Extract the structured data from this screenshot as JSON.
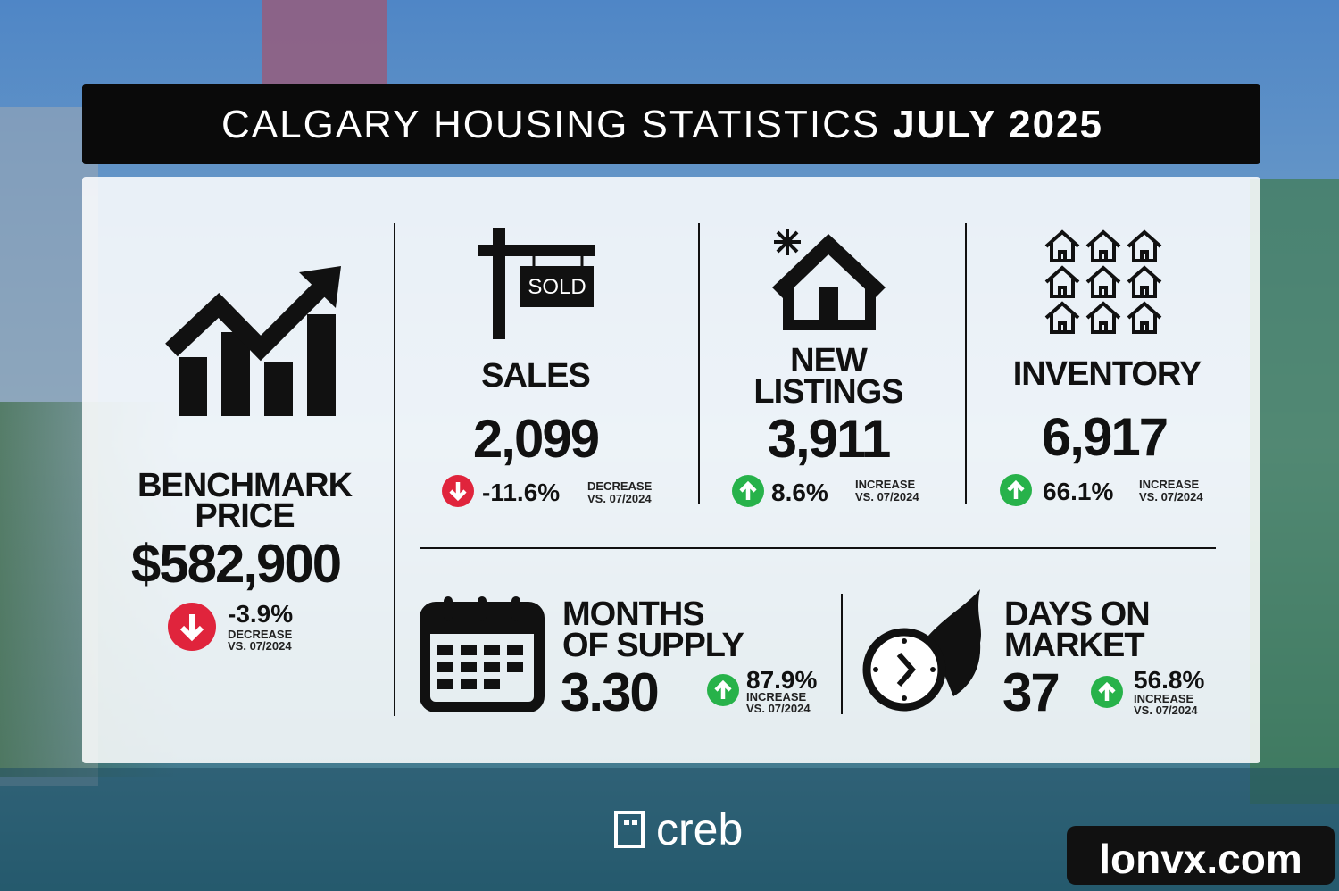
{
  "header": {
    "title": "CALGARY HOUSING STATISTICS",
    "period": "JULY 2025"
  },
  "benchmark": {
    "label": [
      "BENCHMARK",
      "PRICE"
    ],
    "value": "$582,900",
    "change": "-3.9%",
    "change_label": "DECREASE",
    "comparison": "VS. 07/2024"
  },
  "sales": {
    "label": [
      "SALES"
    ],
    "value": "2,099",
    "change": "-11.6%",
    "change_label": "DECREASE",
    "comparison": "VS. 07/2024",
    "sign": "SOLD"
  },
  "new_listings": {
    "label": [
      "NEW",
      "LISTINGS"
    ],
    "value": "3,911",
    "change": "8.6%",
    "change_label": "INCREASE",
    "comparison": "VS. 07/2024"
  },
  "inventory": {
    "label": [
      "INVENTORY"
    ],
    "value": "6,917",
    "change": "66.1%",
    "change_label": "INCREASE",
    "comparison": "VS. 07/2024"
  },
  "months_of_supply": {
    "label": [
      "MONTHS",
      "OF SUPPLY"
    ],
    "value": "3.30",
    "change": "87.9%",
    "change_label": "INCREASE",
    "comparison": "VS. 07/2024"
  },
  "days_on_market": {
    "label": [
      "DAYS ON",
      "MARKET"
    ],
    "value": "37",
    "change": "56.8%",
    "change_label": "INCREASE",
    "comparison": "VS. 07/2024"
  },
  "footer": {
    "logo": "creb",
    "watermark": "lonvx.com"
  }
}
